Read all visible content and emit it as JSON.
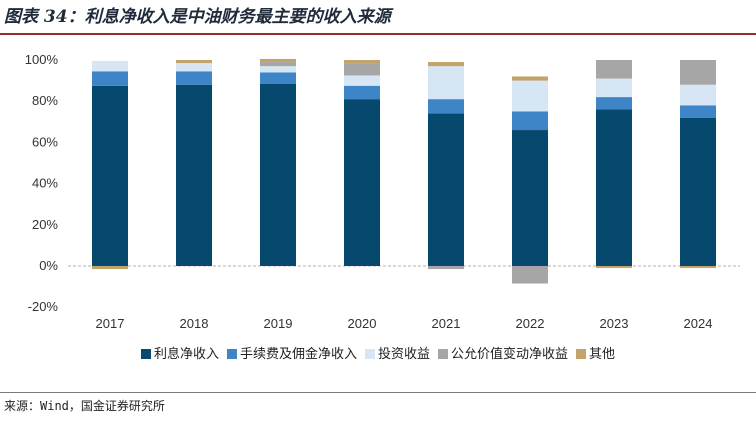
{
  "header": {
    "title": "图表 34：利息净收入是中油财务最主要的收入来源"
  },
  "footer": {
    "source": "来源：Wind，国金证券研究所"
  },
  "chart_data": {
    "type": "bar",
    "stacked": true,
    "title": "",
    "xlabel": "",
    "ylabel": "",
    "ylim": [
      -20,
      100
    ],
    "yticks": [
      "-20%",
      "0%",
      "20%",
      "40%",
      "60%",
      "80%",
      "100%"
    ],
    "ytick_values": [
      -20,
      0,
      20,
      40,
      60,
      80,
      100
    ],
    "categories": [
      "2017",
      "2018",
      "2019",
      "2020",
      "2021",
      "2022",
      "2023",
      "2024"
    ],
    "series": [
      {
        "name": "利息净收入",
        "color": "#07486e",
        "values": [
          87.5,
          88,
          88.5,
          81,
          74,
          66,
          76,
          72
        ]
      },
      {
        "name": "手续费及佣金净收入",
        "color": "#3d85c6",
        "values": [
          7,
          6.5,
          5.5,
          6.5,
          7,
          9,
          6,
          6
        ]
      },
      {
        "name": "投资收益",
        "color": "#d6e6f5",
        "values": [
          5,
          4,
          3,
          5,
          16,
          15,
          9,
          10
        ]
      },
      {
        "name": "公允价值变动净收益",
        "color": "#a6a6a6",
        "values": [
          0,
          0,
          2,
          6,
          -1.5,
          -8.5,
          9,
          12
        ]
      },
      {
        "name": "其他",
        "color": "#c2a46a",
        "values": [
          -1.5,
          1.5,
          1.5,
          1.5,
          2,
          2,
          -1,
          -1
        ]
      }
    ],
    "legend_position": "bottom",
    "grid": false
  }
}
